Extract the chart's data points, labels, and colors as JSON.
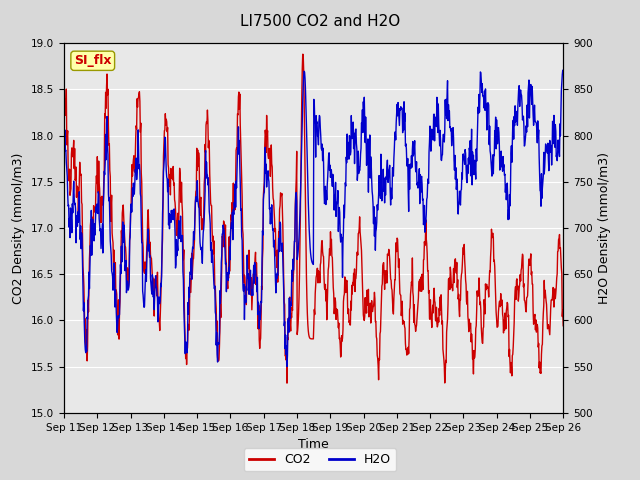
{
  "title": "LI7500 CO2 and H2O",
  "xlabel": "Time",
  "ylabel_left": "CO2 Density (mmol/m3)",
  "ylabel_right": "H2O Density (mmol/m3)",
  "co2_ylim": [
    15.0,
    19.0
  ],
  "h2o_ylim": [
    500,
    900
  ],
  "x_tick_labels": [
    "Sep 11",
    "Sep 12",
    "Sep 13",
    "Sep 14",
    "Sep 15",
    "Sep 16",
    "Sep 17",
    "Sep 18",
    "Sep 19",
    "Sep 20",
    "Sep 21",
    "Sep 22",
    "Sep 23",
    "Sep 24",
    "Sep 25",
    "Sep 26"
  ],
  "co2_yticks": [
    15.0,
    15.5,
    16.0,
    16.5,
    17.0,
    17.5,
    18.0,
    18.5,
    19.0
  ],
  "h2o_yticks": [
    500,
    550,
    600,
    650,
    700,
    750,
    800,
    850,
    900
  ],
  "co2_color": "#cc0000",
  "h2o_color": "#0000cc",
  "fig_bg_color": "#d8d8d8",
  "plot_bg_color": "#e8e8e8",
  "legend_co2": "CO2",
  "legend_h2o": "H2O",
  "tag_text": "SI_flx",
  "tag_bg": "#ffffaa",
  "tag_border": "#999900",
  "tag_text_color": "#cc0000",
  "title_fontsize": 11,
  "axis_fontsize": 9,
  "tick_fontsize": 7.5,
  "legend_fontsize": 9,
  "line_width": 1.0
}
